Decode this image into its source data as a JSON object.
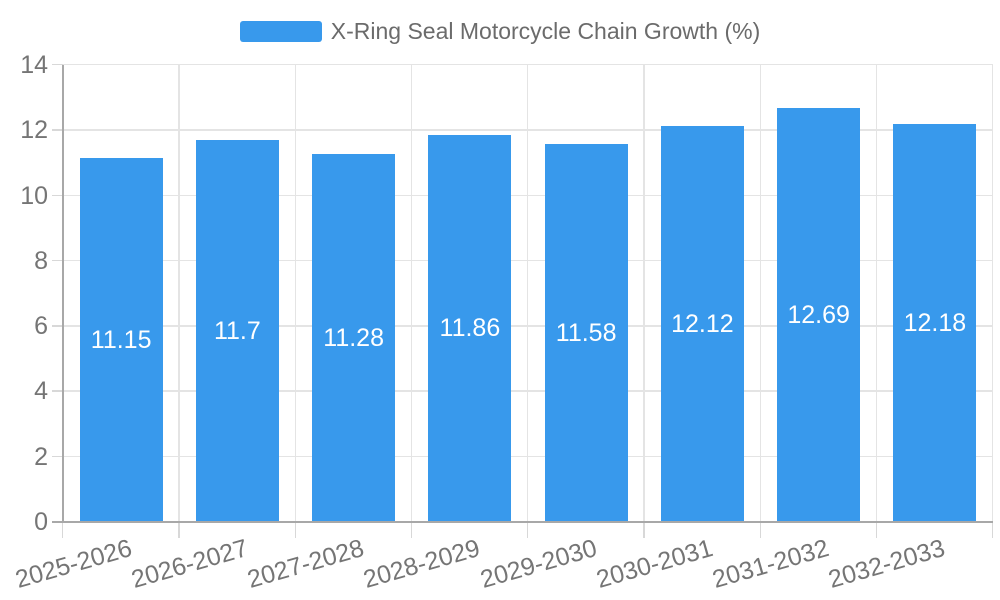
{
  "chart_data": {
    "type": "bar",
    "title": "X-Ring Seal Motorcycle Chain Growth (%)",
    "legend": {
      "label": "X-Ring Seal Motorcycle Chain Growth (%)",
      "position": "top-center"
    },
    "categories": [
      "2025-2026",
      "2026-2027",
      "2027-2028",
      "2028-2029",
      "2029-2030",
      "2030-2031",
      "2031-2032",
      "2032-2033"
    ],
    "series": [
      {
        "name": "X-Ring Seal Motorcycle Chain Growth (%)",
        "values": [
          11.15,
          11.7,
          11.28,
          11.86,
          11.58,
          12.12,
          12.69,
          12.18
        ],
        "value_labels": [
          "11.15",
          "11.7",
          "11.28",
          "11.86",
          "11.58",
          "12.12",
          "12.69",
          "12.18"
        ]
      }
    ],
    "xlabel": "",
    "ylabel": "",
    "ylim": [
      0,
      14
    ],
    "yticks": [
      0,
      2,
      4,
      6,
      8,
      10,
      12,
      14
    ],
    "grid": true,
    "bar_labels_inside": true,
    "colors": {
      "bar": "#3899EC",
      "bar_label_text": "#FFFFFF",
      "axis_line": "#A8A8A8",
      "grid_line": "#E4E4E4",
      "tick_mark": "#D8D8D8",
      "tick_text": "#757575",
      "legend_text": "#6B6B6B",
      "background": "#FFFFFF"
    }
  }
}
